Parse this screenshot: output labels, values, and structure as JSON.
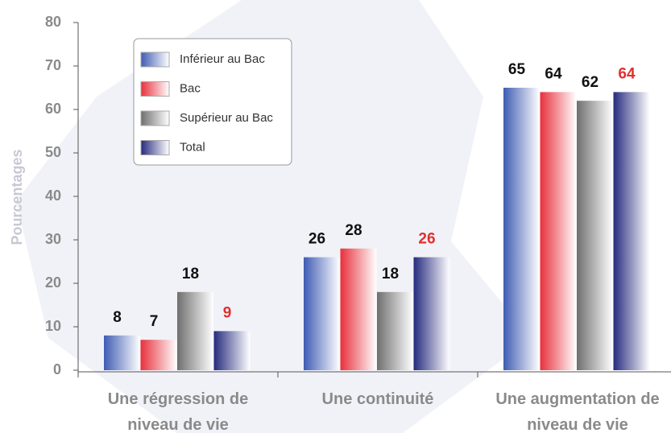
{
  "chart_data": {
    "type": "bar",
    "ylabel": "Pourcentages",
    "categories": [
      [
        "Une régression de",
        "niveau de vie"
      ],
      [
        "Une continuité"
      ],
      [
        "Une augmentation de",
        "niveau de vie"
      ]
    ],
    "series": [
      {
        "name": "Inférieur au Bac",
        "color": "#3f5cb4",
        "label_color": "#111111",
        "values": [
          8,
          26,
          65
        ]
      },
      {
        "name": "Bac",
        "color": "#e8303c",
        "label_color": "#111111",
        "values": [
          7,
          28,
          64
        ]
      },
      {
        "name": "Supérieur au Bac",
        "color": "#6f6f6f",
        "label_color": "#111111",
        "values": [
          18,
          18,
          62
        ]
      },
      {
        "name": "Total",
        "color": "#262b7e",
        "label_color": "#e0302c",
        "values": [
          9,
          26,
          64
        ]
      }
    ],
    "ylim": [
      0,
      80
    ],
    "yticks": [
      0,
      10,
      20,
      30,
      40,
      50,
      60,
      70,
      80
    ],
    "legend": "upper left"
  }
}
